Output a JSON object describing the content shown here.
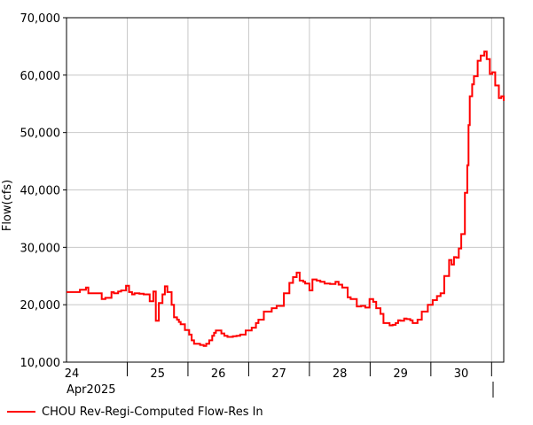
{
  "chart_data": {
    "type": "line",
    "title": "",
    "xlabel": "",
    "ylabel": "Flow(cfs)",
    "ylim": [
      10000,
      70000
    ],
    "yticks": [
      10000,
      20000,
      30000,
      40000,
      50000,
      60000,
      70000
    ],
    "ytick_labels": [
      "10,000",
      "20,000",
      "30,000",
      "40,000",
      "50,000",
      "60,000",
      "70,000"
    ],
    "x_axis": {
      "unit": "day of April 2025",
      "range": [
        23.5,
        30.7
      ],
      "day_ticks": [
        24,
        25,
        26,
        27,
        28,
        29,
        30
      ],
      "day_labels": [
        "24",
        "25",
        "26",
        "27",
        "28",
        "29",
        "30"
      ],
      "month_label": "Apr2025",
      "month_label_day": 24
    },
    "grid": true,
    "legend": "bottom-left",
    "series": [
      {
        "name": "CHOU Rev-Regi-Computed Flow-Res In",
        "color": "#ff0000",
        "step": true,
        "x": [
          23.5,
          23.71,
          23.72,
          23.76,
          23.82,
          23.86,
          24.08,
          24.14,
          24.24,
          24.28,
          24.35,
          24.4,
          24.48,
          24.53,
          24.58,
          24.62,
          24.7,
          24.77,
          24.87,
          24.93,
          24.97,
          25.02,
          25.08,
          25.12,
          25.16,
          25.23,
          25.27,
          25.32,
          25.35,
          25.38,
          25.45,
          25.52,
          25.56,
          25.6,
          25.7,
          25.76,
          25.8,
          25.85,
          25.9,
          25.93,
          25.96,
          26.05,
          26.1,
          26.15,
          26.24,
          26.3,
          26.36,
          26.45,
          26.55,
          26.62,
          26.66,
          26.75,
          26.88,
          26.96,
          27.08,
          27.17,
          27.23,
          27.29,
          27.34,
          27.4,
          27.43,
          27.5,
          27.55,
          27.62,
          27.68,
          27.75,
          27.84,
          27.93,
          27.98,
          28.04,
          28.13,
          28.18,
          28.28,
          28.35,
          28.42,
          28.49,
          28.55,
          28.6,
          28.67,
          28.72,
          28.82,
          28.87,
          28.92,
          28.96,
          29.0,
          29.06,
          29.1,
          29.16,
          29.2,
          29.28,
          29.35,
          29.45,
          29.53,
          29.6,
          29.66,
          29.72,
          29.8,
          29.84,
          29.88,
          29.92,
          29.96,
          30.0,
          30.06,
          30.1,
          30.12,
          30.14,
          30.18,
          30.21,
          30.27,
          30.32,
          30.38,
          30.42,
          30.47,
          30.51,
          30.56,
          30.62,
          30.66,
          30.7
        ],
        "y": [
          22200,
          22200,
          22600,
          22600,
          23000,
          22000,
          21000,
          21200,
          22200,
          22000,
          22300,
          22500,
          23300,
          22200,
          21800,
          22000,
          21900,
          21800,
          20600,
          22300,
          17200,
          20300,
          21800,
          23200,
          22200,
          20000,
          17800,
          17400,
          17000,
          16600,
          15600,
          14800,
          13800,
          13200,
          13000,
          12800,
          13200,
          13800,
          14600,
          15100,
          15500,
          15000,
          14600,
          14400,
          14500,
          14600,
          14800,
          15500,
          16000,
          16800,
          17400,
          18800,
          19400,
          19800,
          22000,
          23800,
          24800,
          25600,
          24200,
          24000,
          23700,
          22500,
          24400,
          24200,
          24000,
          23700,
          23600,
          24000,
          23500,
          23000,
          21300,
          21000,
          19700,
          19800,
          19500,
          21000,
          20500,
          19400,
          18400,
          16800,
          16400,
          16500,
          16800,
          17300,
          17200,
          17600,
          17500,
          17300,
          16800,
          17400,
          18800,
          20000,
          20800,
          21500,
          22000,
          25000,
          27800,
          27000,
          28300,
          28200,
          29800,
          32300,
          39500,
          44300,
          51300,
          56300,
          58400,
          59800,
          62500,
          63400,
          64100,
          62800,
          60200,
          60500,
          58200,
          56000,
          56300,
          55500
        ]
      }
    ]
  }
}
